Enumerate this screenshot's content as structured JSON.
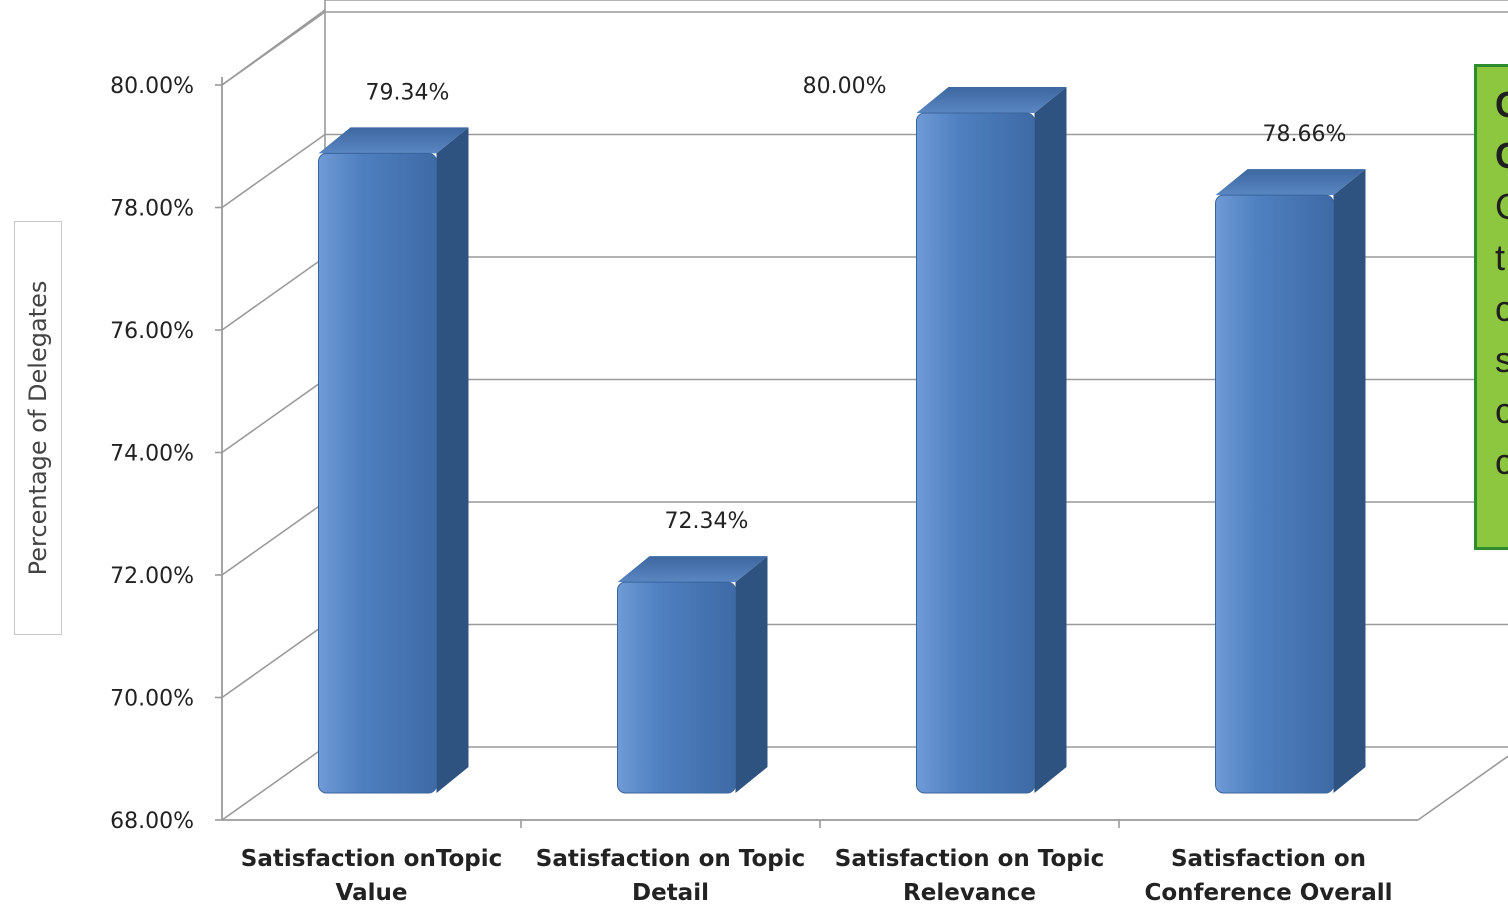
{
  "chart_data": {
    "type": "bar",
    "categories": [
      [
        "Satisfaction onTopic",
        "Value"
      ],
      [
        "Satisfaction on Topic",
        "Detail"
      ],
      [
        "Satisfaction on Topic",
        "Relevance"
      ],
      [
        "Satisfaction on",
        "Conference Overall"
      ]
    ],
    "values": [
      79.34,
      72.34,
      80.0,
      78.66
    ],
    "data_labels": [
      "79.34%",
      "72.34%",
      "80.00%",
      "78.66%"
    ],
    "ylabel": "Percentage of  Delegates",
    "ylim": [
      68,
      80
    ],
    "yticks": [
      "68.00%",
      "70.00%",
      "72.00%",
      "74.00%",
      "76.00%",
      "78.00%",
      "80.00%"
    ],
    "grid": true,
    "bar_color": "#4a7ebb",
    "bar_side_color": "#2f5380"
  },
  "note": {
    "lines_bold": [
      "C",
      "C"
    ],
    "lines": [
      "C",
      "t",
      "c",
      "s",
      "c",
      "c"
    ],
    "bg_color": "#8dc63f",
    "border_color": "#2e8b2e"
  }
}
